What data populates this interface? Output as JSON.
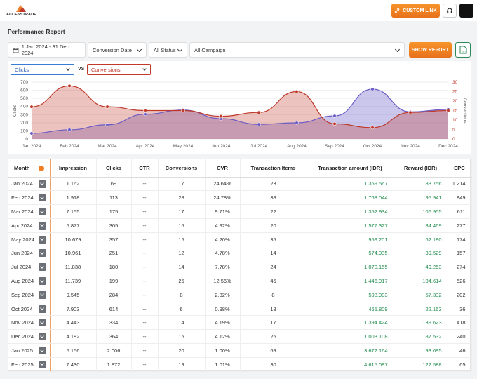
{
  "brand": {
    "name": "ACCESSTRADE"
  },
  "header": {
    "custom_link_label": "CUSTOM LINK"
  },
  "page": {
    "title": "Performance Report"
  },
  "filters": {
    "date_range": "1 Jan 2024 - 31 Dec 2024",
    "date_type": "Conversion Date",
    "status": "All Status",
    "campaign": "All Campaign",
    "show_report_label": "SHOW REPORT"
  },
  "chart_controls": {
    "left_metric": "Clicks",
    "vs_label": "VS",
    "right_metric": "Conversions"
  },
  "chart_data": {
    "type": "area",
    "categories": [
      "Jan 2024",
      "Feb 2024",
      "Mar 2024",
      "Apr 2024",
      "May 2024",
      "Jun 2024",
      "Jul 2024",
      "Aug 2024",
      "Sep 2024",
      "Oct 2024",
      "Nov 2024",
      "Dec 2024"
    ],
    "series": [
      {
        "name": "Clicks",
        "axis": "left",
        "color": "#6b5cc6",
        "values": [
          69,
          113,
          175,
          305,
          357,
          251,
          180,
          199,
          284,
          614,
          334,
          364
        ]
      },
      {
        "name": "Conversions",
        "axis": "right",
        "color": "#c0392b",
        "values": [
          17,
          28,
          17,
          15,
          15,
          12,
          14,
          25,
          8,
          6,
          14,
          15
        ]
      }
    ],
    "yleft": {
      "label": "Clicks",
      "ticks": [
        "0",
        "100",
        "200",
        "300",
        "400",
        "500",
        "600",
        "700"
      ],
      "min": 0,
      "max": 700
    },
    "yright": {
      "label": "Conversions",
      "ticks": [
        "0",
        "5",
        "10",
        "15",
        "20",
        "25",
        "30"
      ],
      "min": 0,
      "max": 30
    },
    "grid": true
  },
  "table": {
    "columns": [
      "Month",
      "Impression",
      "Clicks",
      "CTR",
      "Conversions",
      "CVR",
      "Transaction Items",
      "Transaction amount (IDR)",
      "Reward (IDR)",
      "EPC"
    ],
    "rows": [
      [
        "Jan 2024",
        "1.162",
        "69",
        "--",
        "17",
        "24.64%",
        "23",
        "1.369.567",
        "83.756",
        "1.214"
      ],
      [
        "Feb 2024",
        "1.918",
        "113",
        "--",
        "28",
        "24.78%",
        "38",
        "1.768.044",
        "95.941",
        "849"
      ],
      [
        "Mar 2024",
        "7.155",
        "175",
        "--",
        "17",
        "9.71%",
        "22",
        "1.352.934",
        "106.955",
        "611"
      ],
      [
        "Apr 2024",
        "5.877",
        "305",
        "--",
        "15",
        "4.92%",
        "20",
        "1.577.327",
        "84.469",
        "277"
      ],
      [
        "May 2024",
        "10.679",
        "357",
        "--",
        "15",
        "4.20%",
        "35",
        "959.201",
        "62.180",
        "174"
      ],
      [
        "Jun 2024",
        "10.961",
        "251",
        "--",
        "12",
        "4.78%",
        "14",
        "574.935",
        "39.529",
        "157"
      ],
      [
        "Jul 2024",
        "11.838",
        "180",
        "--",
        "14",
        "7.78%",
        "24",
        "1.070.155",
        "49.253",
        "274"
      ],
      [
        "Aug 2024",
        "11.739",
        "199",
        "--",
        "25",
        "12.56%",
        "45",
        "1.446.917",
        "104.614",
        "526"
      ],
      [
        "Sep 2024",
        "9.545",
        "284",
        "--",
        "8",
        "2.82%",
        "8",
        "598.903",
        "57.332",
        "202"
      ],
      [
        "Oct 2024",
        "7.903",
        "614",
        "--",
        "6",
        "0.98%",
        "18",
        "465.809",
        "22.163",
        "36"
      ],
      [
        "Nov 2024",
        "4.443",
        "334",
        "--",
        "14",
        "4.19%",
        "17",
        "1.394.424",
        "139.623",
        "418"
      ],
      [
        "Dec 2024",
        "4.182",
        "364",
        "--",
        "15",
        "4.12%",
        "25",
        "1.003.108",
        "87.532",
        "240"
      ],
      [
        "Jan 2025",
        "5.156",
        "2.006",
        "--",
        "20",
        "1.00%",
        "69",
        "3.672.164",
        "93.095",
        "46"
      ],
      [
        "Feb 2025",
        "7.430",
        "1.872",
        "--",
        "19",
        "1.01%",
        "30",
        "4.615.087",
        "122.588",
        "65"
      ]
    ]
  }
}
